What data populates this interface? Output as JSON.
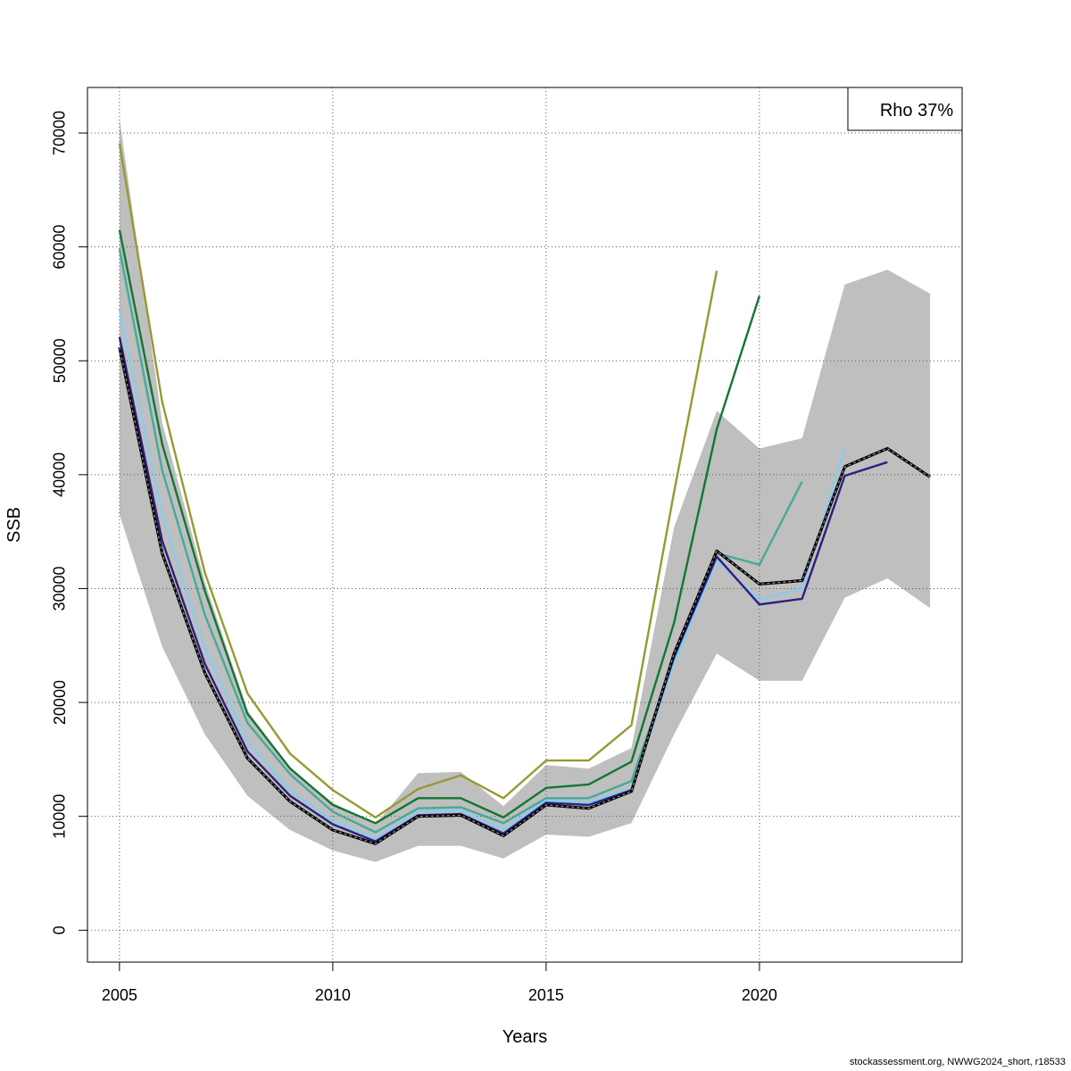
{
  "chart_data": {
    "type": "line",
    "xlabel": "Years",
    "ylabel": "SSB",
    "xlim": [
      2004.25,
      2024.75
    ],
    "ylim": [
      -2800,
      74000
    ],
    "xticks": [
      2005,
      2010,
      2015,
      2020
    ],
    "yticks": [
      0,
      10000,
      20000,
      30000,
      40000,
      50000,
      60000,
      70000
    ],
    "grid": true,
    "legend": {
      "text": "Rho 37%",
      "position": "top-right"
    },
    "band": {
      "x": [
        2005,
        2006,
        2007,
        2008,
        2009,
        2010,
        2011,
        2012,
        2013,
        2014,
        2015,
        2016,
        2017,
        2018,
        2019,
        2020,
        2021,
        2022,
        2023,
        2024
      ],
      "lower": [
        36500,
        24900,
        17200,
        11800,
        8800,
        7000,
        6000,
        7400,
        7400,
        6300,
        8400,
        8200,
        9400,
        17200,
        24300,
        21900,
        21900,
        29200,
        30900,
        28300
      ],
      "upper": [
        71300,
        44600,
        30600,
        19300,
        14200,
        11200,
        9300,
        13800,
        13900,
        10900,
        14500,
        14200,
        16000,
        35400,
        45600,
        42300,
        43200,
        56700,
        58000,
        55900
      ],
      "color": "#bfbfbf"
    },
    "series": [
      {
        "color": "#000000",
        "dashed": true,
        "x": [
          2005,
          2006,
          2007,
          2008,
          2009,
          2010,
          2011,
          2012,
          2013,
          2014,
          2015,
          2016,
          2017,
          2018,
          2019,
          2020,
          2021,
          2022,
          2023,
          2024
        ],
        "values": [
          51200,
          33100,
          22600,
          15100,
          11300,
          8800,
          7600,
          10000,
          10100,
          8300,
          11000,
          10700,
          12200,
          24300,
          33300,
          30400,
          30700,
          40700,
          42300,
          39800
        ]
      },
      {
        "color": "#2d1e82",
        "x": [
          2005,
          2006,
          2007,
          2008,
          2009,
          2010,
          2011,
          2012,
          2013,
          2014,
          2015,
          2016,
          2017,
          2018,
          2019,
          2020,
          2021,
          2022,
          2023
        ],
        "values": [
          52100,
          34200,
          23400,
          15700,
          11800,
          9300,
          7800,
          10100,
          10200,
          8500,
          11200,
          11000,
          12300,
          24000,
          32800,
          28600,
          29100,
          39900,
          41100
        ]
      },
      {
        "color": "#88ccee",
        "x": [
          2005,
          2006,
          2007,
          2008,
          2009,
          2010,
          2011,
          2012,
          2013,
          2014,
          2015,
          2016,
          2017,
          2018,
          2019,
          2020,
          2021,
          2022
        ],
        "values": [
          54500,
          36500,
          24800,
          16600,
          12300,
          9600,
          8100,
          10400,
          10500,
          8800,
          11400,
          11200,
          12500,
          23400,
          32500,
          29000,
          30000,
          42200
        ]
      },
      {
        "color": "#44aa99",
        "x": [
          2005,
          2006,
          2007,
          2008,
          2009,
          2010,
          2011,
          2012,
          2013,
          2014,
          2015,
          2016,
          2017,
          2018,
          2019,
          2020,
          2021
        ],
        "values": [
          59800,
          40400,
          27700,
          18200,
          13700,
          10400,
          8600,
          10700,
          10800,
          9400,
          11600,
          11600,
          13100,
          23900,
          33100,
          32100,
          39400
        ]
      },
      {
        "color": "#117733",
        "x": [
          2005,
          2006,
          2007,
          2008,
          2009,
          2010,
          2011,
          2012,
          2013,
          2014,
          2015,
          2016,
          2017,
          2018,
          2019,
          2020
        ],
        "values": [
          61500,
          42700,
          29800,
          19000,
          14200,
          11000,
          9400,
          11600,
          11600,
          9900,
          12500,
          12800,
          14800,
          27000,
          44000,
          55700
        ]
      },
      {
        "color": "#999933",
        "x": [
          2005,
          2006,
          2007,
          2008,
          2009,
          2010,
          2011,
          2012,
          2013,
          2014,
          2015,
          2016,
          2017,
          2018,
          2019
        ],
        "values": [
          69100,
          46400,
          31400,
          20800,
          15500,
          12300,
          9900,
          12400,
          13600,
          11600,
          14900,
          14900,
          18000,
          38500,
          57900
        ]
      }
    ]
  },
  "footer": "stockassessment.org, NWWG2024_short, r18533"
}
